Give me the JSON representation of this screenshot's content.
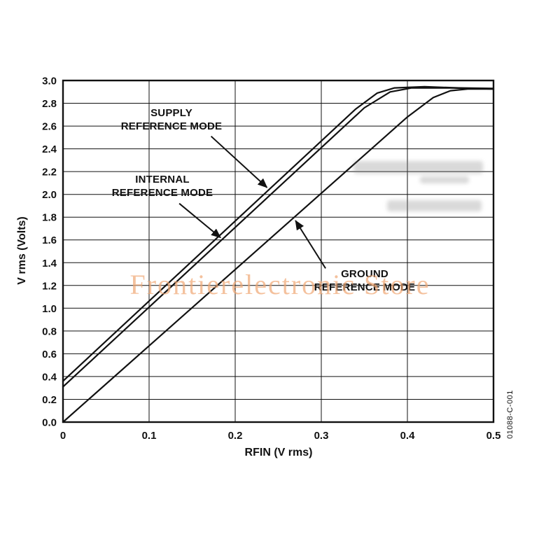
{
  "watermark": {
    "text": "Frontierelectronic Store",
    "color": "#f0a875"
  },
  "side_code": "01088-C-001",
  "chart_data": {
    "type": "line",
    "title": "",
    "xlabel": "RFIN (V rms)",
    "ylabel": "V rms (Volts)",
    "xlim": [
      0,
      0.5
    ],
    "ylim": [
      0,
      3.0
    ],
    "x_ticks": [
      0,
      0.1,
      0.2,
      0.3,
      0.4,
      0.5
    ],
    "x_tick_labels": [
      "0",
      "0.1",
      "0.2",
      "0.3",
      "0.4",
      "0.5"
    ],
    "y_ticks": [
      0,
      0.2,
      0.4,
      0.6,
      0.8,
      1.0,
      1.2,
      1.4,
      1.6,
      1.8,
      2.0,
      2.2,
      2.4,
      2.6,
      2.8,
      3.0
    ],
    "y_tick_labels": [
      "0.0",
      "0.2",
      "0.4",
      "0.6",
      "0.8",
      "1.0",
      "1.2",
      "1.4",
      "1.6",
      "1.8",
      "2.0",
      "2.2",
      "2.4",
      "2.6",
      "2.8",
      "3.0"
    ],
    "grid": true,
    "legend_position": "none",
    "axis_color": "#111111",
    "line_color": "#111111",
    "series": [
      {
        "id": "supply-reference-mode",
        "name": "SUPPLY REFERENCE MODE",
        "points": [
          [
            0,
            0.36
          ],
          [
            0.34,
            2.75
          ],
          [
            0.365,
            2.89
          ],
          [
            0.385,
            2.935
          ],
          [
            0.42,
            2.945
          ],
          [
            0.46,
            2.935
          ],
          [
            0.5,
            2.93
          ]
        ]
      },
      {
        "id": "internal-reference-mode",
        "name": "INTERNAL REFERENCE MODE",
        "points": [
          [
            0,
            0.31
          ],
          [
            0.35,
            2.76
          ],
          [
            0.38,
            2.9
          ],
          [
            0.405,
            2.935
          ],
          [
            0.45,
            2.935
          ],
          [
            0.5,
            2.925
          ]
        ]
      },
      {
        "id": "ground-reference-mode",
        "name": "GROUND REFERENCE MODE",
        "points": [
          [
            0,
            0.0
          ],
          [
            0.4,
            2.68
          ],
          [
            0.43,
            2.85
          ],
          [
            0.45,
            2.91
          ],
          [
            0.47,
            2.925
          ],
          [
            0.5,
            2.925
          ]
        ]
      }
    ],
    "annotations": [
      {
        "id": "supply",
        "text": [
          "SUPPLY",
          "REFERENCE MODE"
        ],
        "arrow_from": [
          0.172,
          2.51
        ],
        "arrow_to": [
          0.237,
          2.06
        ]
      },
      {
        "id": "internal",
        "text": [
          "INTERNAL",
          "REFERENCE MODE"
        ],
        "arrow_from": [
          0.135,
          1.92
        ],
        "arrow_to": [
          0.183,
          1.62
        ]
      },
      {
        "id": "ground",
        "text": [
          "GROUND",
          "REFERENCE MODE"
        ],
        "arrow_from": [
          0.305,
          1.35
        ],
        "arrow_to": [
          0.27,
          1.77
        ]
      }
    ]
  }
}
